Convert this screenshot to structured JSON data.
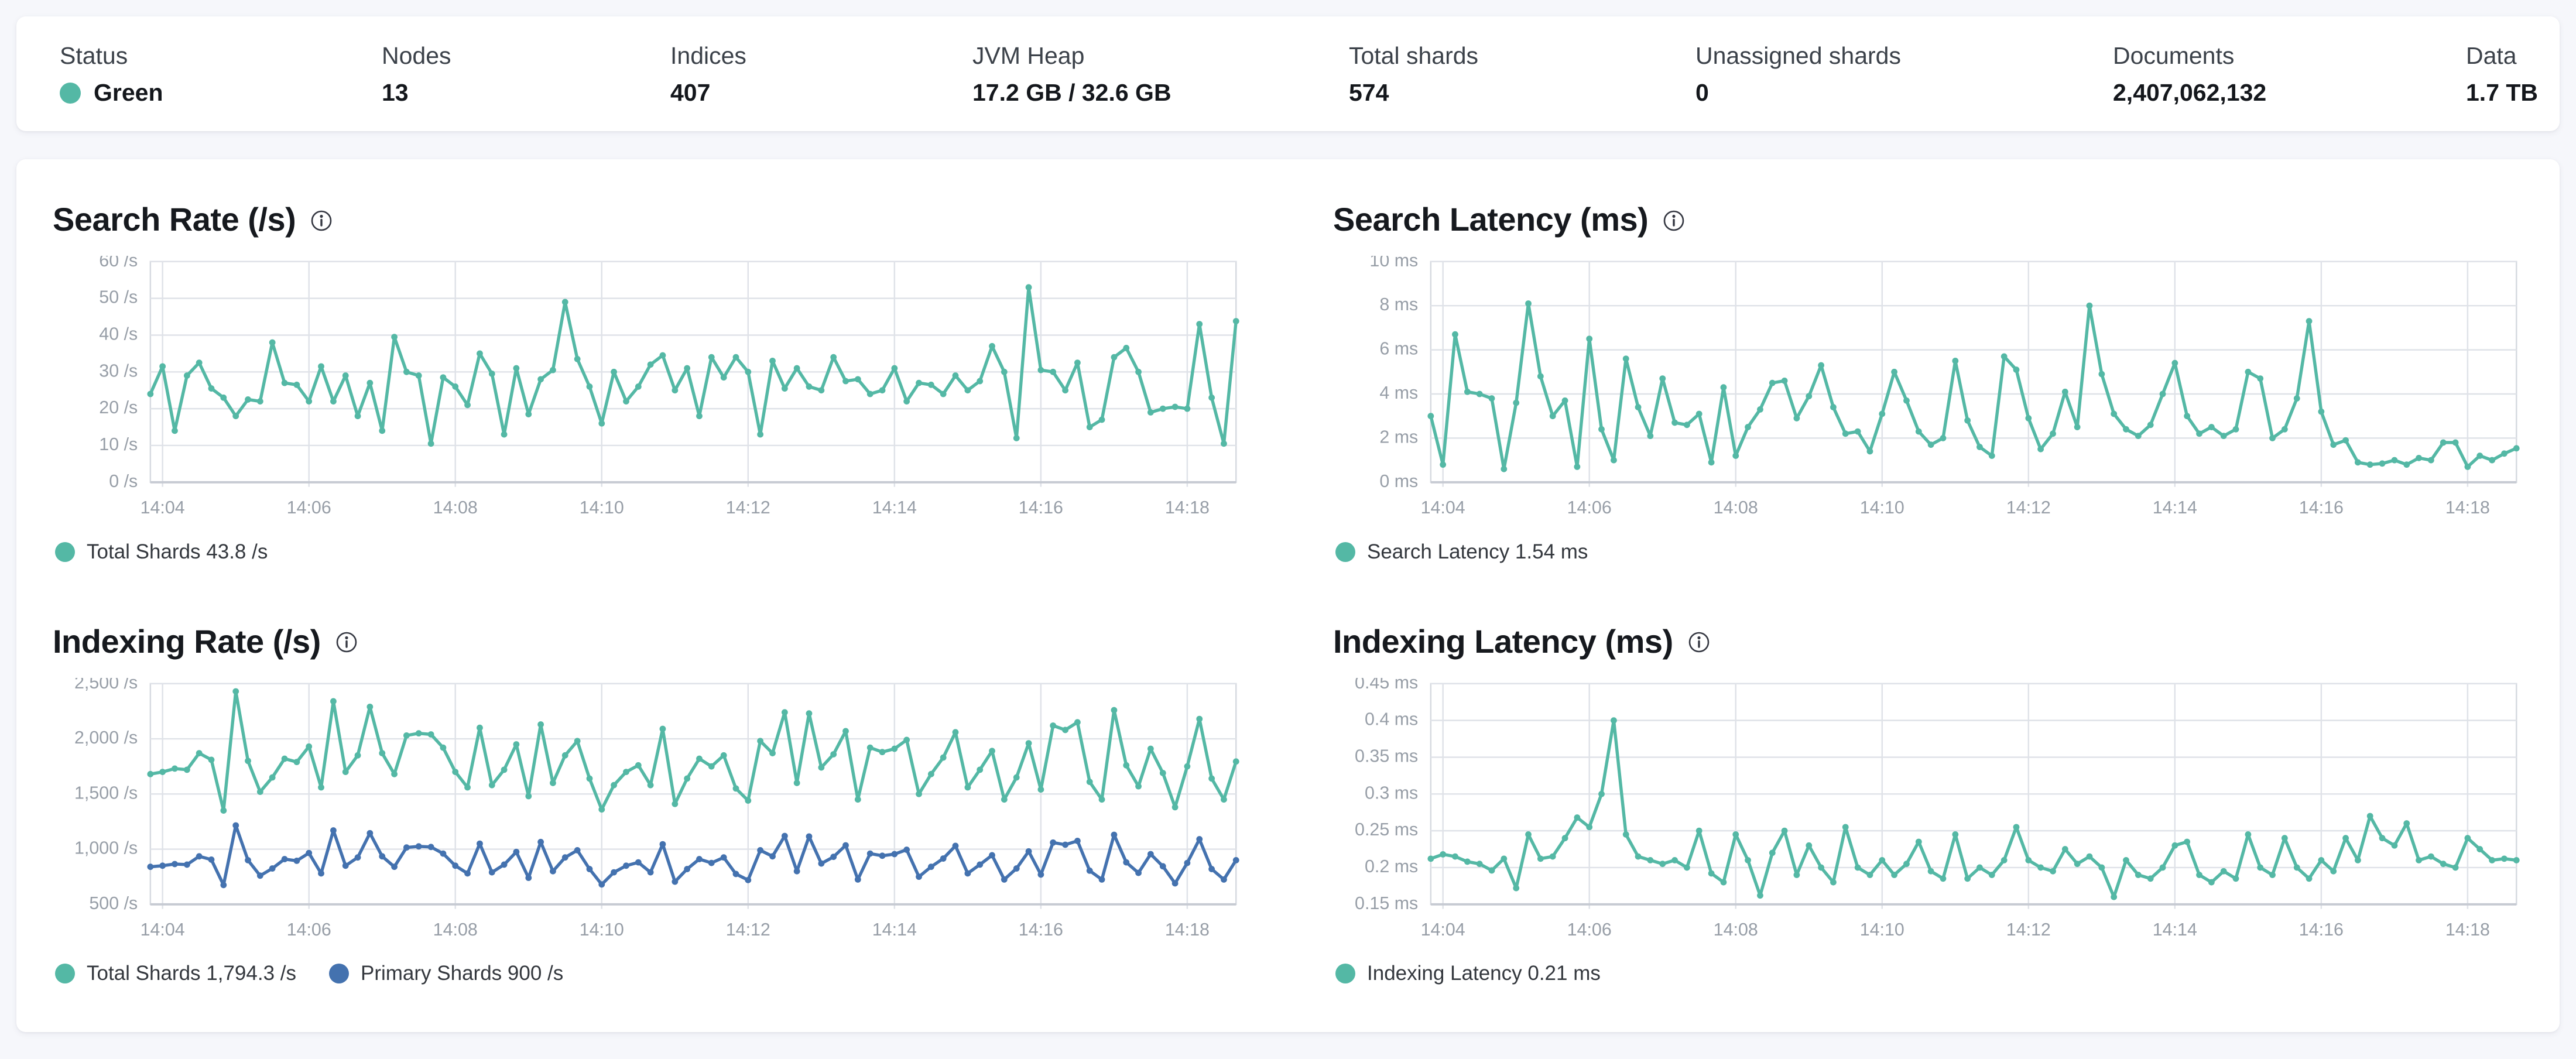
{
  "status_bar": {
    "stats": [
      {
        "label": "Status",
        "value": "Green",
        "dot_color": "#54b8a5"
      },
      {
        "label": "Nodes",
        "value": "13"
      },
      {
        "label": "Indices",
        "value": "407"
      },
      {
        "label": "JVM Heap",
        "value": "17.2 GB / 32.6 GB"
      },
      {
        "label": "Total shards",
        "value": "574"
      },
      {
        "label": "Unassigned shards",
        "value": "0"
      },
      {
        "label": "Documents",
        "value": "2,407,062,132"
      },
      {
        "label": "Data",
        "value": "1.7 TB"
      }
    ]
  },
  "colors": {
    "teal": "#54b8a5",
    "blue": "#4472af"
  },
  "chart_data": [
    {
      "type": "line",
      "title": "Search Rate (/s)",
      "ylabel": "/s",
      "ymin": 0,
      "ymax": 60,
      "grid": true,
      "legend_position": "bottom",
      "yticks": [
        {
          "v": 0,
          "label": "0 /s"
        },
        {
          "v": 10,
          "label": "10 /s"
        },
        {
          "v": 20,
          "label": "20 /s"
        },
        {
          "v": 30,
          "label": "30 /s"
        },
        {
          "v": 40,
          "label": "40 /s"
        },
        {
          "v": 50,
          "label": "50 /s"
        },
        {
          "v": 60,
          "label": "60 /s"
        }
      ],
      "xticks": [
        {
          "i": 1,
          "label": "14:04"
        },
        {
          "i": 13,
          "label": "14:06"
        },
        {
          "i": 25,
          "label": "14:08"
        },
        {
          "i": 37,
          "label": "14:10"
        },
        {
          "i": 49,
          "label": "14:12"
        },
        {
          "i": 61,
          "label": "14:14"
        },
        {
          "i": 73,
          "label": "14:16"
        },
        {
          "i": 85,
          "label": "14:18"
        }
      ],
      "series": [
        {
          "name": "Total Shards",
          "color": "#54b8a5",
          "values": [
            24,
            31.5,
            14,
            29,
            32.5,
            25.5,
            23,
            18,
            22.5,
            22,
            38,
            27,
            26.5,
            22,
            31.5,
            22,
            29,
            18,
            27,
            14,
            39.5,
            30,
            29,
            10.5,
            28.5,
            26,
            21,
            35,
            29.5,
            13,
            31,
            18.5,
            28,
            30.5,
            49,
            33.5,
            26,
            16,
            30,
            22,
            26,
            32,
            34.5,
            25,
            31,
            18,
            34,
            28.5,
            34,
            30,
            13,
            33,
            25.5,
            31,
            26,
            25,
            34,
            27.5,
            28,
            24,
            25,
            31,
            22,
            27,
            26.5,
            24,
            29,
            25,
            27.5,
            37,
            30,
            12,
            53,
            30.5,
            30,
            25,
            32.5,
            15,
            17,
            34,
            36.5,
            30,
            19,
            20,
            20.5,
            20,
            43,
            23,
            10.5,
            43.8
          ]
        }
      ],
      "legend": [
        {
          "label": "Total Shards 43.8 /s",
          "color": "#54b8a5"
        }
      ]
    },
    {
      "type": "line",
      "title": "Search Latency (ms)",
      "ylabel": "ms",
      "ymin": 0,
      "ymax": 10,
      "grid": true,
      "legend_position": "bottom",
      "yticks": [
        {
          "v": 0,
          "label": "0 ms"
        },
        {
          "v": 2,
          "label": "2 ms"
        },
        {
          "v": 4,
          "label": "4 ms"
        },
        {
          "v": 6,
          "label": "6 ms"
        },
        {
          "v": 8,
          "label": "8 ms"
        },
        {
          "v": 10,
          "label": "10 ms"
        }
      ],
      "xticks": [
        {
          "i": 1,
          "label": "14:04"
        },
        {
          "i": 13,
          "label": "14:06"
        },
        {
          "i": 25,
          "label": "14:08"
        },
        {
          "i": 37,
          "label": "14:10"
        },
        {
          "i": 49,
          "label": "14:12"
        },
        {
          "i": 61,
          "label": "14:14"
        },
        {
          "i": 73,
          "label": "14:16"
        },
        {
          "i": 85,
          "label": "14:18"
        }
      ],
      "series": [
        {
          "name": "Search Latency",
          "color": "#54b8a5",
          "values": [
            3.0,
            0.8,
            6.7,
            4.1,
            4.0,
            3.8,
            0.6,
            3.6,
            8.1,
            4.8,
            3.0,
            3.7,
            0.7,
            6.5,
            2.4,
            1.0,
            5.6,
            3.4,
            2.1,
            4.7,
            2.7,
            2.6,
            3.1,
            0.9,
            4.3,
            1.2,
            2.5,
            3.3,
            4.5,
            4.6,
            2.9,
            3.9,
            5.3,
            3.4,
            2.2,
            2.3,
            1.4,
            3.1,
            5.0,
            3.7,
            2.3,
            1.7,
            2.0,
            5.5,
            2.8,
            1.6,
            1.2,
            5.7,
            5.1,
            2.9,
            1.5,
            2.2,
            4.1,
            2.5,
            8.0,
            4.9,
            3.1,
            2.4,
            2.1,
            2.6,
            4.0,
            5.4,
            3.0,
            2.2,
            2.5,
            2.1,
            2.4,
            5.0,
            4.7,
            2.0,
            2.4,
            3.8,
            7.3,
            3.2,
            1.7,
            1.9,
            0.9,
            0.8,
            0.85,
            1.0,
            0.8,
            1.1,
            1.0,
            1.8,
            1.8,
            0.7,
            1.2,
            1.0,
            1.3,
            1.54
          ]
        }
      ],
      "legend": [
        {
          "label": "Search Latency 1.54 ms",
          "color": "#54b8a5"
        }
      ]
    },
    {
      "type": "line",
      "title": "Indexing Rate (/s)",
      "ylabel": "/s",
      "ymin": 500,
      "ymax": 2500,
      "grid": true,
      "legend_position": "bottom",
      "yticks": [
        {
          "v": 500,
          "label": "500 /s"
        },
        {
          "v": 1000,
          "label": "1,000 /s"
        },
        {
          "v": 1500,
          "label": "1,500 /s"
        },
        {
          "v": 2000,
          "label": "2,000 /s"
        },
        {
          "v": 2500,
          "label": "2,500 /s"
        }
      ],
      "xticks": [
        {
          "i": 1,
          "label": "14:04"
        },
        {
          "i": 13,
          "label": "14:06"
        },
        {
          "i": 25,
          "label": "14:08"
        },
        {
          "i": 37,
          "label": "14:10"
        },
        {
          "i": 49,
          "label": "14:12"
        },
        {
          "i": 61,
          "label": "14:14"
        },
        {
          "i": 73,
          "label": "14:16"
        },
        {
          "i": 85,
          "label": "14:18"
        }
      ],
      "series": [
        {
          "name": "Total Shards",
          "color": "#54b8a5",
          "values": [
            1680,
            1700,
            1730,
            1720,
            1870,
            1810,
            1350,
            2430,
            1800,
            1520,
            1650,
            1820,
            1790,
            1930,
            1560,
            2340,
            1700,
            1850,
            2290,
            1870,
            1680,
            2030,
            2050,
            2040,
            1920,
            1700,
            1560,
            2100,
            1580,
            1720,
            1950,
            1480,
            2130,
            1600,
            1850,
            1980,
            1640,
            1360,
            1580,
            1700,
            1760,
            1580,
            2090,
            1410,
            1640,
            1820,
            1750,
            1850,
            1550,
            1440,
            1980,
            1870,
            2240,
            1600,
            2230,
            1740,
            1860,
            2070,
            1450,
            1920,
            1880,
            1910,
            1990,
            1500,
            1680,
            1830,
            2060,
            1560,
            1720,
            1890,
            1450,
            1650,
            1960,
            1540,
            2120,
            2080,
            2150,
            1610,
            1450,
            2260,
            1760,
            1570,
            1910,
            1690,
            1380,
            1750,
            2180,
            1640,
            1450,
            1794.3
          ]
        },
        {
          "name": "Primary Shards",
          "color": "#4472af",
          "values": [
            840,
            850,
            865,
            860,
            935,
            905,
            675,
            1215,
            900,
            760,
            825,
            910,
            895,
            965,
            780,
            1170,
            850,
            925,
            1145,
            935,
            840,
            1015,
            1025,
            1020,
            960,
            850,
            780,
            1050,
            790,
            860,
            975,
            740,
            1065,
            800,
            925,
            990,
            820,
            680,
            790,
            850,
            880,
            790,
            1045,
            705,
            820,
            910,
            875,
            925,
            775,
            720,
            990,
            935,
            1120,
            800,
            1115,
            870,
            930,
            1035,
            725,
            960,
            940,
            955,
            995,
            750,
            840,
            915,
            1030,
            780,
            860,
            945,
            725,
            825,
            980,
            770,
            1060,
            1040,
            1075,
            805,
            725,
            1130,
            880,
            785,
            955,
            845,
            690,
            875,
            1090,
            820,
            725,
            900
          ]
        }
      ],
      "legend": [
        {
          "label": "Total Shards 1,794.3 /s",
          "color": "#54b8a5"
        },
        {
          "label": "Primary Shards 900 /s",
          "color": "#4472af"
        }
      ]
    },
    {
      "type": "line",
      "title": "Indexing Latency (ms)",
      "ylabel": "ms",
      "ymin": 0.15,
      "ymax": 0.45,
      "grid": true,
      "legend_position": "bottom",
      "yticks": [
        {
          "v": 0.15,
          "label": "0.15 ms"
        },
        {
          "v": 0.2,
          "label": "0.2 ms"
        },
        {
          "v": 0.25,
          "label": "0.25 ms"
        },
        {
          "v": 0.3,
          "label": "0.3 ms"
        },
        {
          "v": 0.35,
          "label": "0.35 ms"
        },
        {
          "v": 0.4,
          "label": "0.4 ms"
        },
        {
          "v": 0.45,
          "label": "0.45 ms"
        }
      ],
      "xticks": [
        {
          "i": 1,
          "label": "14:04"
        },
        {
          "i": 13,
          "label": "14:06"
        },
        {
          "i": 25,
          "label": "14:08"
        },
        {
          "i": 37,
          "label": "14:10"
        },
        {
          "i": 49,
          "label": "14:12"
        },
        {
          "i": 61,
          "label": "14:14"
        },
        {
          "i": 73,
          "label": "14:16"
        },
        {
          "i": 85,
          "label": "14:18"
        }
      ],
      "series": [
        {
          "name": "Indexing Latency",
          "color": "#54b8a5",
          "values": [
            0.212,
            0.218,
            0.215,
            0.208,
            0.205,
            0.196,
            0.212,
            0.172,
            0.245,
            0.212,
            0.215,
            0.24,
            0.268,
            0.255,
            0.3,
            0.4,
            0.245,
            0.215,
            0.21,
            0.205,
            0.21,
            0.2,
            0.25,
            0.192,
            0.18,
            0.245,
            0.21,
            0.162,
            0.22,
            0.25,
            0.19,
            0.23,
            0.2,
            0.18,
            0.255,
            0.2,
            0.19,
            0.21,
            0.19,
            0.205,
            0.235,
            0.195,
            0.185,
            0.245,
            0.185,
            0.2,
            0.19,
            0.21,
            0.255,
            0.21,
            0.2,
            0.195,
            0.225,
            0.205,
            0.215,
            0.2,
            0.16,
            0.21,
            0.19,
            0.185,
            0.2,
            0.23,
            0.235,
            0.19,
            0.18,
            0.195,
            0.185,
            0.245,
            0.2,
            0.19,
            0.24,
            0.2,
            0.185,
            0.21,
            0.195,
            0.24,
            0.21,
            0.27,
            0.24,
            0.23,
            0.26,
            0.21,
            0.215,
            0.205,
            0.2,
            0.24,
            0.225,
            0.21,
            0.212,
            0.21
          ]
        }
      ],
      "legend": [
        {
          "label": "Indexing Latency 0.21 ms",
          "color": "#54b8a5"
        }
      ]
    }
  ]
}
